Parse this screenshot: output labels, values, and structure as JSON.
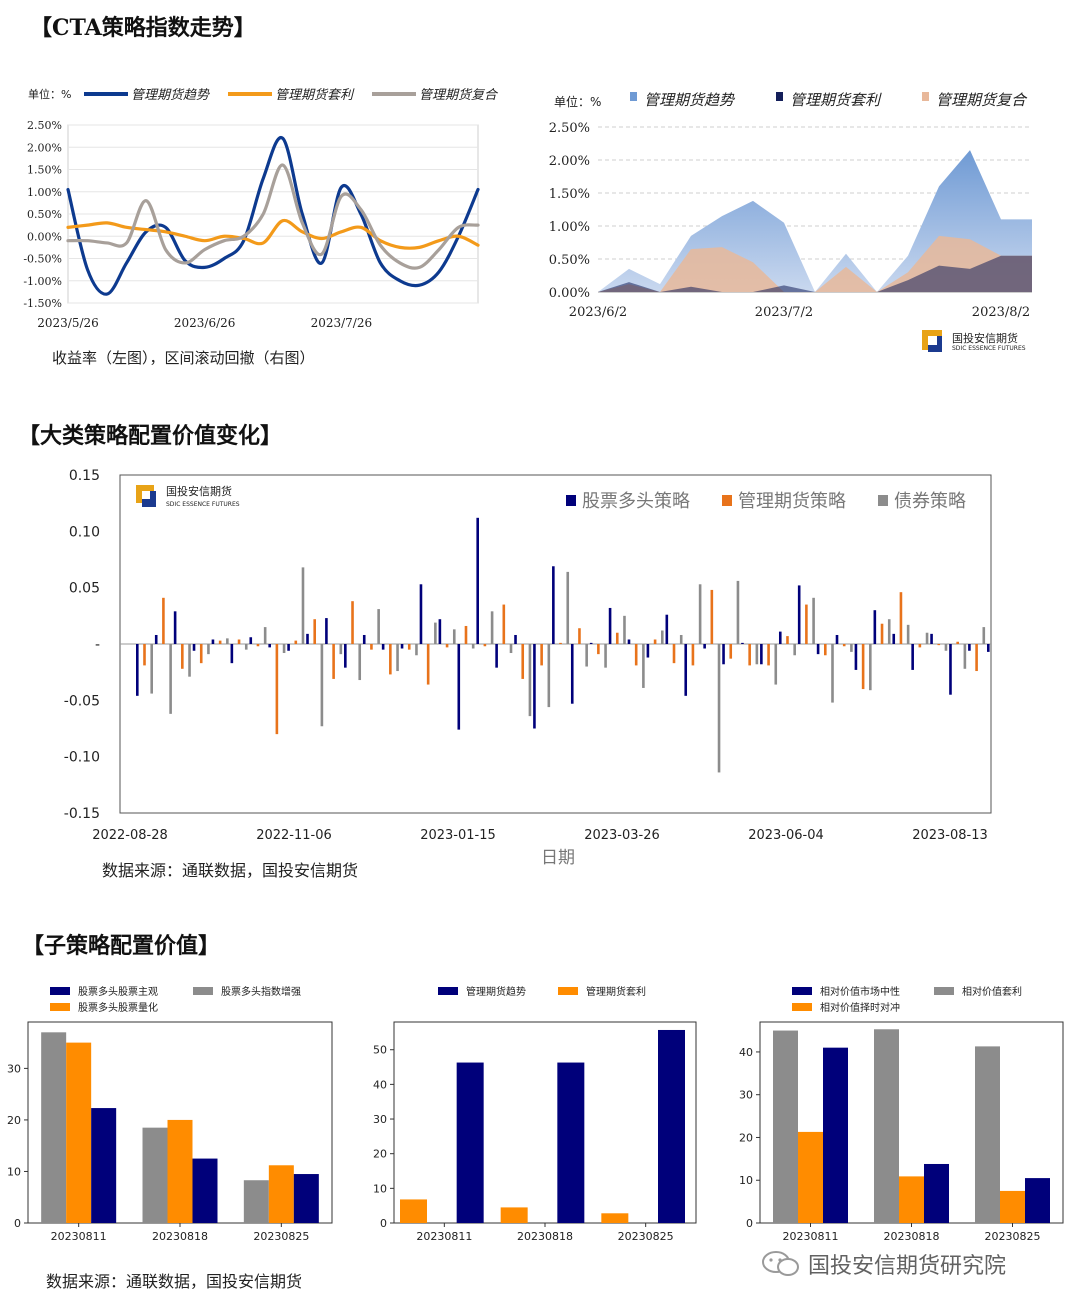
{
  "sections": {
    "cta_title": "【CTA策略指数走势】",
    "bigclass_title": "【大类策略配置价值变化】",
    "sub_title": "【子策略配置价值】"
  },
  "captions": {
    "cta_caption": "收益率（左图），区间滚动回撤（右图）",
    "big_source": "数据来源：通联数据，国投安信期货",
    "sub_source": "数据来源：通联数据，国投安信期货"
  },
  "watermark": {
    "text": "国投安信期货研究院",
    "logo_cn": "国投安信期货",
    "logo_en": "SDIC ESSENCE FUTURES"
  },
  "colors": {
    "navy": "#0d3a8f",
    "darknavy": "#00007a",
    "orange": "#f39a1a",
    "orange2": "#e8731b",
    "gray": "#a8a09a",
    "gray2": "#8c8c8c"
  },
  "chart_data": [
    {
      "id": "cta_return",
      "type": "line",
      "unit_label": "单位：%",
      "ylim": [
        -1.5,
        2.5
      ],
      "yticks": [
        2.5,
        2.0,
        1.5,
        1.0,
        0.5,
        0.0,
        -0.5,
        -1.0,
        -1.5
      ],
      "ytick_labels": [
        "2.50%",
        "2.00%",
        "1.50%",
        "1.00%",
        "0.50%",
        "0.00%",
        "-0.50%",
        "-1.00%",
        "-1.50%"
      ],
      "xlabels": [
        "2023/5/26",
        "2023/6/26",
        "2023/7/26"
      ],
      "xlabel_index": [
        0,
        7,
        14
      ],
      "n_points": 22,
      "series": [
        {
          "name": "管理期货趋势",
          "color": "#0d3a8f",
          "values": [
            1.05,
            -0.75,
            -1.3,
            -0.6,
            0.1,
            0.2,
            -0.55,
            -0.7,
            -0.5,
            -0.1,
            1.3,
            2.2,
            0.5,
            -0.6,
            1.1,
            0.5,
            -0.6,
            -1.0,
            -1.1,
            -0.8,
            0.0,
            1.05
          ]
        },
        {
          "name": "管理期货套利",
          "color": "#f39a1a",
          "values": [
            0.2,
            0.25,
            0.3,
            0.2,
            0.15,
            0.1,
            0.0,
            -0.1,
            0.0,
            -0.05,
            -0.15,
            0.35,
            0.1,
            -0.05,
            0.1,
            0.2,
            -0.1,
            -0.25,
            -0.25,
            -0.1,
            0.0,
            -0.2
          ]
        },
        {
          "name": "管理期货复合",
          "color": "#a8a09a",
          "values": [
            -0.1,
            -0.1,
            -0.15,
            -0.15,
            0.8,
            -0.3,
            -0.6,
            -0.3,
            -0.1,
            0.0,
            0.5,
            1.6,
            0.3,
            -0.4,
            0.9,
            0.6,
            -0.2,
            -0.6,
            -0.7,
            -0.3,
            0.2,
            0.25
          ]
        }
      ]
    },
    {
      "id": "cta_drawdown",
      "type": "area",
      "unit_label": "单位：%",
      "ylim": [
        0,
        2.5
      ],
      "yticks": [
        2.5,
        2.0,
        1.5,
        1.0,
        0.5,
        0.0
      ],
      "ytick_labels": [
        "2.50%",
        "2.00%",
        "1.50%",
        "1.00%",
        "0.50%",
        "0.00%"
      ],
      "xlabels": [
        "2023/6/2",
        "2023/7/2",
        "2023/8/2"
      ],
      "xlabel_index": [
        0,
        6,
        13
      ],
      "n_points": 19,
      "series": [
        {
          "name": "管理期货趋势",
          "color": "#6f9ad4",
          "values": [
            0.0,
            0.35,
            0.12,
            0.85,
            1.15,
            1.38,
            1.05,
            0.0,
            0.58,
            0.0,
            0.55,
            1.6,
            2.15,
            1.1,
            1.1,
            1.1,
            1.1,
            1.1,
            1.1
          ]
        },
        {
          "name": "管理期货套利",
          "color": "#141f5a",
          "values": [
            0.0,
            0.15,
            0.0,
            0.08,
            0.0,
            0.0,
            0.1,
            0.0,
            0.0,
            0.0,
            0.18,
            0.4,
            0.35,
            0.55,
            0.55,
            0.55,
            0.55,
            0.55,
            0.55
          ]
        },
        {
          "name": "管理期货复合",
          "color": "#e8b89a",
          "values": [
            0.0,
            0.12,
            0.0,
            0.65,
            0.68,
            0.45,
            0.0,
            0.0,
            0.38,
            0.0,
            0.3,
            0.85,
            0.8,
            0.55,
            0.55,
            0.55,
            0.55,
            0.55,
            0.55
          ]
        }
      ]
    },
    {
      "id": "bigclass",
      "type": "bar",
      "ylim": [
        -0.15,
        0.15
      ],
      "ytick_labels": [
        "0.15",
        "0.10",
        "0.05",
        "-",
        "-0.05",
        "-0.10",
        "-0.15"
      ],
      "xlabels": [
        "2022-08-28",
        "2022-11-06",
        "2023-01-15",
        "2023-03-26",
        "2023-06-04",
        "2023-08-13"
      ],
      "xlabel": "日期",
      "series": [
        {
          "name": "股票多头策略",
          "color": "#00007a",
          "values": [
            -0.046,
            0.008,
            0.029,
            -0.006,
            0.004,
            -0.017,
            0.006,
            -0.003,
            -0.006,
            0.009,
            0.023,
            -0.021,
            0.008,
            -0.005,
            -0.004,
            0.053,
            0.022,
            -0.076,
            0.112,
            -0.021,
            0.008,
            -0.075,
            0.069,
            -0.053,
            0.001,
            0.032,
            0.004,
            -0.012,
            0.026,
            -0.046,
            -0.004,
            -0.018,
            0.001,
            -0.018,
            0.011,
            0.052,
            -0.009,
            0.008,
            -0.023,
            0.03,
            0.009,
            -0.023,
            0.009,
            -0.045,
            -0.006,
            -0.007
          ]
        },
        {
          "name": "管理期货策略",
          "color": "#e8731b",
          "values": [
            -0.019,
            0.041,
            -0.022,
            -0.017,
            0.003,
            0.004,
            -0.002,
            -0.08,
            0.003,
            0.022,
            -0.031,
            0.038,
            -0.005,
            -0.027,
            -0.005,
            -0.036,
            -0.003,
            0.016,
            -0.002,
            0.035,
            -0.031,
            -0.019,
            0.001,
            0.014,
            -0.009,
            0.01,
            -0.019,
            0.004,
            -0.017,
            -0.019,
            0.048,
            -0.013,
            -0.019,
            -0.019,
            0.007,
            0.035,
            -0.01,
            -0.002,
            -0.04,
            0.018,
            0.046,
            -0.003,
            -0.001,
            0.002,
            -0.024
          ]
        },
        {
          "name": "债券策略",
          "color": "#8c8c8c",
          "values": [
            -0.044,
            -0.062,
            -0.029,
            -0.009,
            0.005,
            -0.005,
            0.015,
            -0.008,
            0.068,
            -0.073,
            -0.009,
            -0.032,
            0.031,
            -0.024,
            -0.01,
            0.019,
            0.013,
            -0.004,
            0.029,
            -0.008,
            -0.064,
            -0.056,
            0.064,
            -0.02,
            -0.021,
            0.025,
            -0.039,
            0.012,
            0.008,
            0.053,
            -0.114,
            0.056,
            -0.018,
            -0.036,
            -0.01,
            0.041,
            -0.052,
            -0.007,
            -0.041,
            0.022,
            0.017,
            0.01,
            -0.006,
            -0.022,
            0.015
          ]
        }
      ]
    },
    {
      "id": "sub_stock",
      "type": "bar",
      "categories": [
        "20230811",
        "20230818",
        "20230825"
      ],
      "ylim": [
        0,
        39
      ],
      "yticks": [
        0,
        10,
        20,
        30
      ],
      "legend": [
        {
          "name": "股票多头股票主观",
          "color": "#00007a"
        },
        {
          "name": "股票多头指数增强",
          "color": "#8c8c8c"
        },
        {
          "name": "股票多头股票量化",
          "color": "#ff8c00"
        }
      ],
      "series": [
        {
          "name": "股票多头指数增强",
          "color": "#8c8c8c",
          "values": [
            37.0,
            18.5,
            8.3
          ]
        },
        {
          "name": "股票多头股票量化",
          "color": "#ff8c00",
          "values": [
            35.0,
            20.0,
            11.2
          ]
        },
        {
          "name": "股票多头股票主观",
          "color": "#00007a",
          "values": [
            22.3,
            12.5,
            9.5
          ]
        }
      ]
    },
    {
      "id": "sub_cta",
      "type": "bar",
      "categories": [
        "20230811",
        "20230818",
        "20230825"
      ],
      "ylim": [
        0,
        58
      ],
      "yticks": [
        0,
        10,
        20,
        30,
        40,
        50
      ],
      "legend": [
        {
          "name": "管理期货趋势",
          "color": "#00007a"
        },
        {
          "name": "管理期货套利",
          "color": "#ff8c00"
        }
      ],
      "series": [
        {
          "name": "管理期货套利",
          "color": "#ff8c00",
          "values": [
            6.8,
            4.5,
            2.8
          ]
        },
        {
          "name": "管理期货趋势",
          "color": "#00007a",
          "values": [
            46.3,
            46.3,
            55.7
          ]
        }
      ]
    },
    {
      "id": "sub_rv",
      "type": "bar",
      "categories": [
        "20230811",
        "20230818",
        "20230825"
      ],
      "ylim": [
        0,
        47
      ],
      "yticks": [
        0,
        10,
        20,
        30,
        40
      ],
      "legend": [
        {
          "name": "相对价值市场中性",
          "color": "#00007a"
        },
        {
          "name": "相对价值套利",
          "color": "#8c8c8c"
        },
        {
          "name": "相对价值择时对冲",
          "color": "#ff8c00"
        }
      ],
      "series": [
        {
          "name": "相对价值套利",
          "color": "#8c8c8c",
          "values": [
            45.0,
            45.3,
            41.3
          ]
        },
        {
          "name": "相对价值择时对冲",
          "color": "#ff8c00",
          "values": [
            21.3,
            10.9,
            7.5
          ]
        },
        {
          "name": "相对价值市场中性",
          "color": "#00007a",
          "values": [
            41.0,
            13.8,
            10.5
          ]
        }
      ]
    }
  ]
}
